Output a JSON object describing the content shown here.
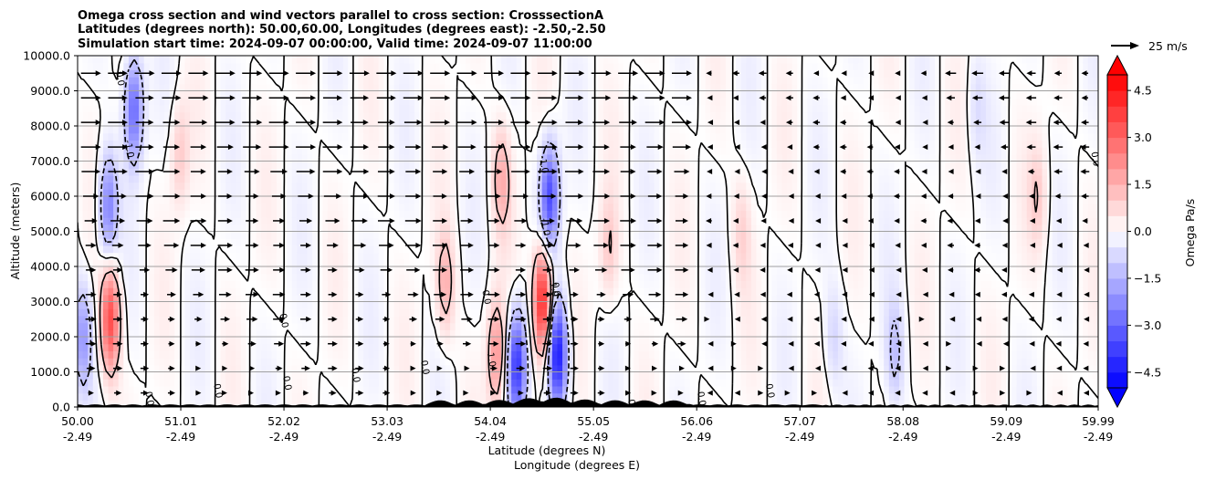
{
  "chart_data": {
    "type": "heatmap",
    "title_lines": [
      "Omega cross section and wind vectors parallel to cross section: CrosssectionA",
      "Latitudes (degrees north): 50.00,60.00, Longitudes (degrees east): -2.50,-2.50",
      "Simulation start time: 2024-09-07 00:00:00, Valid time: 2024-09-07 11:00:00"
    ],
    "ylabel": "Altitude (meters)",
    "xlabel_lat": "Latitude (degrees N)",
    "xlabel_lon": "Longitude (degrees E)",
    "ylim": [
      0,
      10000
    ],
    "xlim": [
      50.0,
      59.99
    ],
    "y_ticks": [
      "0.0",
      "1000.0",
      "2000.0",
      "3000.0",
      "4000.0",
      "5000.0",
      "6000.0",
      "7000.0",
      "8000.0",
      "9000.0",
      "10000.0"
    ],
    "x_ticks_lat": [
      "50.00",
      "51.01",
      "52.02",
      "53.03",
      "54.04",
      "55.05",
      "56.06",
      "57.07",
      "58.08",
      "59.09",
      "59.99"
    ],
    "x_ticks_lon": [
      "-2.49",
      "-2.49",
      "-2.49",
      "-2.49",
      "-2.49",
      "-2.49",
      "-2.49",
      "-2.49",
      "-2.49",
      "-2.49",
      "-2.49"
    ],
    "grid": "horizontal",
    "colorbar": {
      "label": "Omega Pa/s",
      "range": [
        -5.0,
        5.0
      ],
      "extend": "both",
      "tick_labels": [
        "4.5",
        "3.0",
        "1.5",
        "0.0",
        "−1.5",
        "−3.0",
        "−4.5"
      ],
      "tick_values": [
        4.5,
        3.0,
        1.5,
        0.0,
        -1.5,
        -3.0,
        -4.5
      ],
      "colors": {
        "min": "#0000ff",
        "mid": "#ffffff",
        "max": "#ff0000"
      }
    },
    "quiver_key": {
      "label": "25 m/s"
    },
    "contour_levels": [
      -1.0,
      0.0,
      1.0
    ],
    "contour_labels": [
      "0.0",
      "1.0",
      "-1.0"
    ],
    "terrain_color": "#000000",
    "features": [
      {
        "lat": 50.05,
        "alt": 2000,
        "omega": -2.0
      },
      {
        "lat": 50.32,
        "alt": 2500,
        "omega": 3.5
      },
      {
        "lat": 50.3,
        "alt": 5700,
        "omega": -2.5
      },
      {
        "lat": 50.55,
        "alt": 8500,
        "omega": -3.0
      },
      {
        "lat": 51.0,
        "alt": 7200,
        "omega": 1.0
      },
      {
        "lat": 53.6,
        "alt": 3500,
        "omega": 1.5
      },
      {
        "lat": 54.1,
        "alt": 1500,
        "omega": 2.0
      },
      {
        "lat": 54.15,
        "alt": 6500,
        "omega": 1.5
      },
      {
        "lat": 54.3,
        "alt": 1200,
        "omega": -4.0
      },
      {
        "lat": 54.55,
        "alt": 3000,
        "omega": 4.5
      },
      {
        "lat": 54.62,
        "alt": 6000,
        "omega": -3.5
      },
      {
        "lat": 54.7,
        "alt": 1500,
        "omega": -4.5
      },
      {
        "lat": 55.2,
        "alt": 4500,
        "omega": 1.0
      },
      {
        "lat": 56.5,
        "alt": 5000,
        "omega": 0.8
      },
      {
        "lat": 57.4,
        "alt": 2000,
        "omega": -0.8
      },
      {
        "lat": 58.0,
        "alt": 1500,
        "omega": -1.2
      },
      {
        "lat": 58.8,
        "alt": 8500,
        "omega": -0.6
      },
      {
        "lat": 59.4,
        "alt": 6000,
        "omega": 0.9
      }
    ]
  }
}
